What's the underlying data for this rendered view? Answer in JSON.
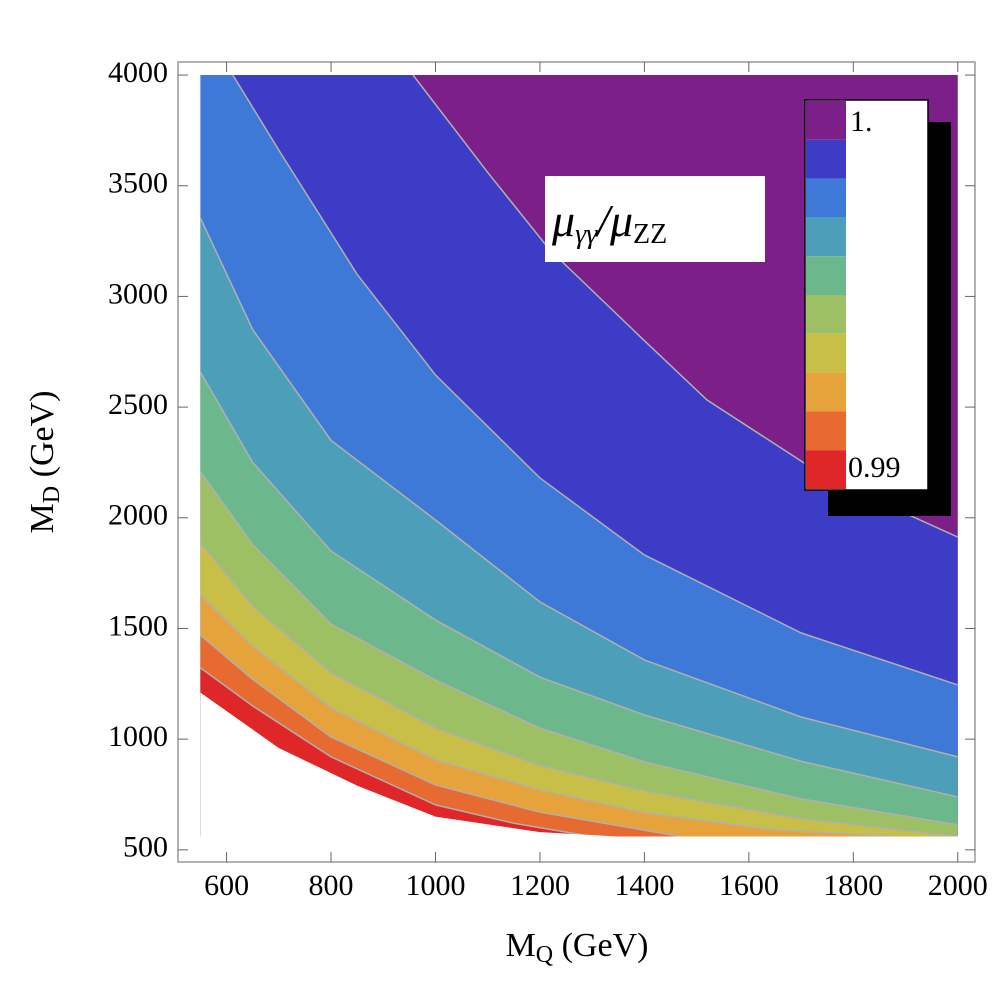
{
  "chart_data": {
    "type": "contour",
    "x_label": {
      "main": "M",
      "sub": "Q",
      "rest": " (GeV)"
    },
    "y_label": {
      "main": "M",
      "sub": "D",
      "rest": " (GeV)"
    },
    "annotation": {
      "a": "μ",
      "a_sub": "γγ",
      "b": "/μ",
      "b_sub": "ZZ"
    },
    "xlim": [
      507,
      2033
    ],
    "ylim": [
      445,
      4059
    ],
    "xticks": [
      600,
      800,
      1000,
      1200,
      1400,
      1600,
      1800,
      2000
    ],
    "yticks": [
      500,
      1000,
      1500,
      2000,
      2500,
      3000,
      3500,
      4000
    ],
    "domain": {
      "x": [
        550,
        2000
      ],
      "y": [
        560,
        4000
      ]
    },
    "band_colors": [
      "#7c1f88",
      "#3c3cc6",
      "#3f79d8",
      "#4d9fb9",
      "#6cb78c",
      "#9cc063",
      "#c7bf47",
      "#e7a33b",
      "#e76a31",
      "#df2629"
    ],
    "contour_color": "#b0b0b0",
    "contours": [
      {
        "x": [
          957,
          1100,
          1219,
          1400,
          1520,
          1750,
          2000
        ],
        "y": [
          4000,
          3560,
          3210,
          2800,
          2532,
          2180,
          1913
        ]
      },
      {
        "x": [
          612,
          700,
          850,
          1000,
          1200,
          1400,
          1700,
          2000
        ],
        "y": [
          4000,
          3661,
          3100,
          2645,
          2180,
          1832,
          1480,
          1245
        ]
      },
      {
        "x": [
          550,
          650,
          800,
          1000,
          1200,
          1400,
          1700,
          2000
        ],
        "y": [
          3354,
          2850,
          2350,
          1990,
          1620,
          1358,
          1100,
          920
        ]
      },
      {
        "x": [
          550,
          650,
          800,
          1000,
          1200,
          1400,
          1700,
          2000
        ],
        "y": [
          2658,
          2250,
          1850,
          1538,
          1280,
          1109,
          900,
          739
        ]
      },
      {
        "x": [
          550,
          650,
          800,
          1000,
          1200,
          1400,
          1700,
          2000
        ],
        "y": [
          2207,
          1880,
          1520,
          1267,
          1050,
          897,
          730,
          613
        ]
      },
      {
        "x": [
          550,
          650,
          800,
          1000,
          1200,
          1400,
          1700,
          2000
        ],
        "y": [
          1886,
          1600,
          1300,
          1050,
          880,
          766,
          640,
          560
        ]
      },
      {
        "x": [
          550,
          650,
          800,
          1000,
          1200,
          1400,
          1650,
          1880
        ],
        "y": [
          1651,
          1420,
          1140,
          906,
          770,
          667,
          590,
          560
        ]
      },
      {
        "x": [
          550,
          650,
          800,
          1000,
          1200,
          1470
        ],
        "y": [
          1470,
          1270,
          1010,
          793,
          670,
          560
        ]
      },
      {
        "x": [
          550,
          650,
          800,
          1000,
          1150,
          1300
        ],
        "y": [
          1322,
          1150,
          920,
          703,
          620,
          560
        ]
      }
    ],
    "domain_boundary": {
      "x": [
        550,
        700,
        850,
        1000,
        1200,
        1350
      ],
      "y": [
        1210,
        960,
        790,
        650,
        580,
        560
      ]
    },
    "colorbar": {
      "top_label": "1.",
      "bottom_label": "0.99"
    }
  }
}
